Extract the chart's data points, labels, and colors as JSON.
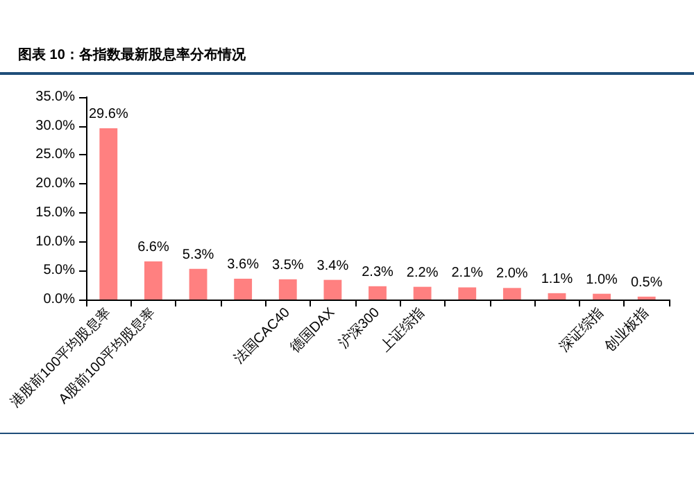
{
  "chart_data": {
    "type": "bar",
    "title": "图表 10：各指数最新股息率分布情况",
    "categories": [
      "港股前100平均股息率",
      "A股前100平均股息率",
      null,
      null,
      "法国CAC40",
      "德国DAX",
      "沪深300",
      "上证综指",
      null,
      null,
      null,
      "深证综指",
      "创业板指"
    ],
    "values": [
      29.6,
      6.6,
      5.3,
      3.6,
      3.5,
      3.4,
      2.3,
      2.2,
      2.1,
      2.0,
      1.1,
      1.0,
      0.5
    ],
    "value_labels": [
      "29.6%",
      "6.6%",
      "5.3%",
      "3.6%",
      "3.5%",
      "3.4%",
      "2.3%",
      "2.2%",
      "2.1%",
      "2.0%",
      "1.1%",
      "1.0%",
      "0.5%"
    ],
    "color": "#ff8080",
    "ylim": [
      0,
      35
    ],
    "yticks": [
      {
        "value": 0,
        "label": "0.0%"
      },
      {
        "value": 5,
        "label": "5.0%"
      },
      {
        "value": 10,
        "label": "10.0%"
      },
      {
        "value": 15,
        "label": "15.0%"
      },
      {
        "value": 20,
        "label": "20.0%"
      },
      {
        "value": 25,
        "label": "25.0%"
      },
      {
        "value": 30,
        "label": "30.0%"
      },
      {
        "value": 35,
        "label": "35.0%"
      }
    ],
    "grid": false
  }
}
